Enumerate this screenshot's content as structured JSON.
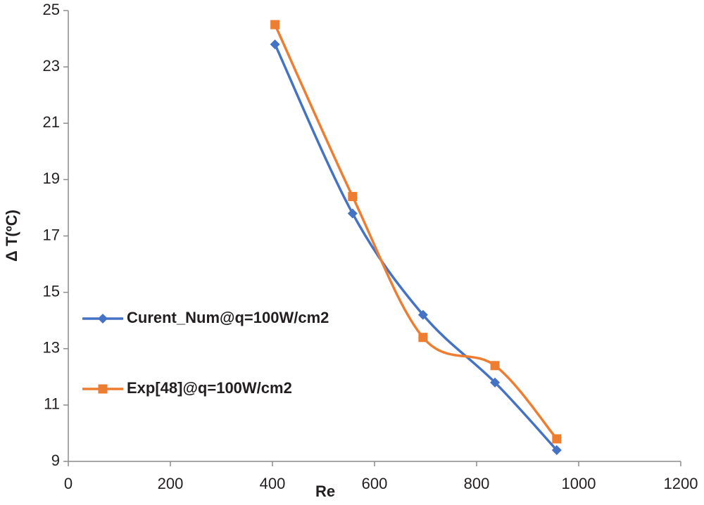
{
  "chart_data": {
    "type": "line",
    "xlabel": "Re",
    "ylabel": "Δ T(ºC)",
    "x": [
      405,
      557,
      695,
      836,
      957
    ],
    "series": [
      {
        "name": "Curent_Num@q=100W/cm2",
        "color": "#4472c4",
        "marker": "diamond",
        "values": [
          23.8,
          17.8,
          14.2,
          11.8,
          9.4
        ]
      },
      {
        "name": "Exp[48]@q=100W/cm2",
        "color": "#ed7d31",
        "marker": "square",
        "values": [
          24.5,
          18.4,
          13.4,
          12.4,
          9.8
        ]
      }
    ],
    "xlim": [
      0,
      1200
    ],
    "xticks": [
      0,
      200,
      400,
      600,
      800,
      1000,
      1200
    ],
    "ylim": [
      9,
      25
    ],
    "yticks": [
      9,
      11,
      13,
      15,
      17,
      19,
      21,
      23,
      25
    ],
    "grid": false,
    "smooth": true,
    "legend": "left"
  }
}
